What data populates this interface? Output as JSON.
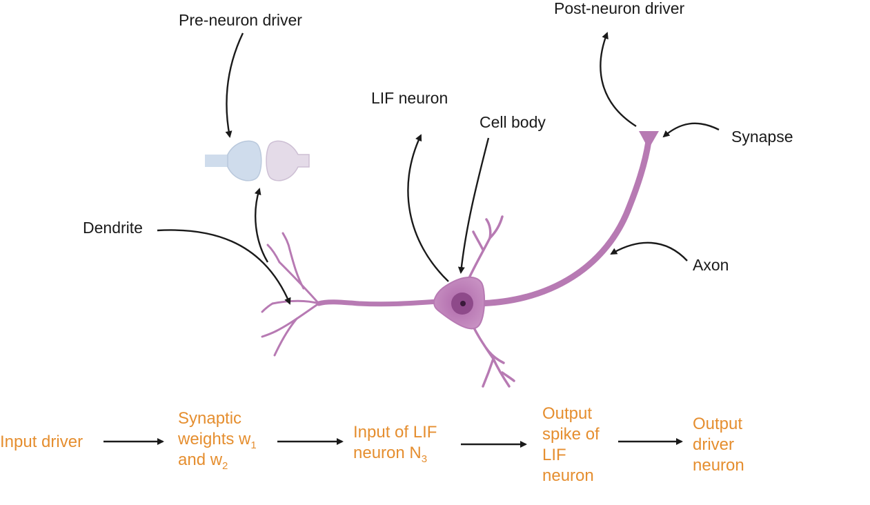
{
  "labels": {
    "pre_neuron_driver": "Pre-neuron driver",
    "post_neuron_driver": "Post-neuron driver",
    "lif_neuron": "LIF neuron",
    "cell_body": "Cell body",
    "synapse": "Synapse",
    "dendrite": "Dendrite",
    "axon": "Axon"
  },
  "flow": {
    "input_driver": "Input driver",
    "weights_line1": "Synaptic",
    "weights_line2_pre": "weights w",
    "weights_sub1": "1",
    "weights_line3_pre": "and w",
    "weights_sub2": "2",
    "lif_input_line1": "Input of LIF",
    "lif_input_line2_pre": "neuron N",
    "lif_input_sub": "3",
    "output_spike_line1": "Output",
    "output_spike_line2": "spike of",
    "output_spike_line3": "LIF",
    "output_spike_line4": "neuron",
    "output_driver_line1": "Output",
    "output_driver_line2": "driver",
    "output_driver_line3": "neuron"
  },
  "colors": {
    "neuron": "#b77ab3",
    "neuron_body": "#c58bbf",
    "nucleus": "#8e4a8a",
    "nucleus_dot": "#3a1a3a",
    "pre_synapse": "#cfdcec",
    "post_synapse": "#e4dbe8",
    "flow_text": "#e58e2f",
    "arrow": "#1a1a1a"
  }
}
